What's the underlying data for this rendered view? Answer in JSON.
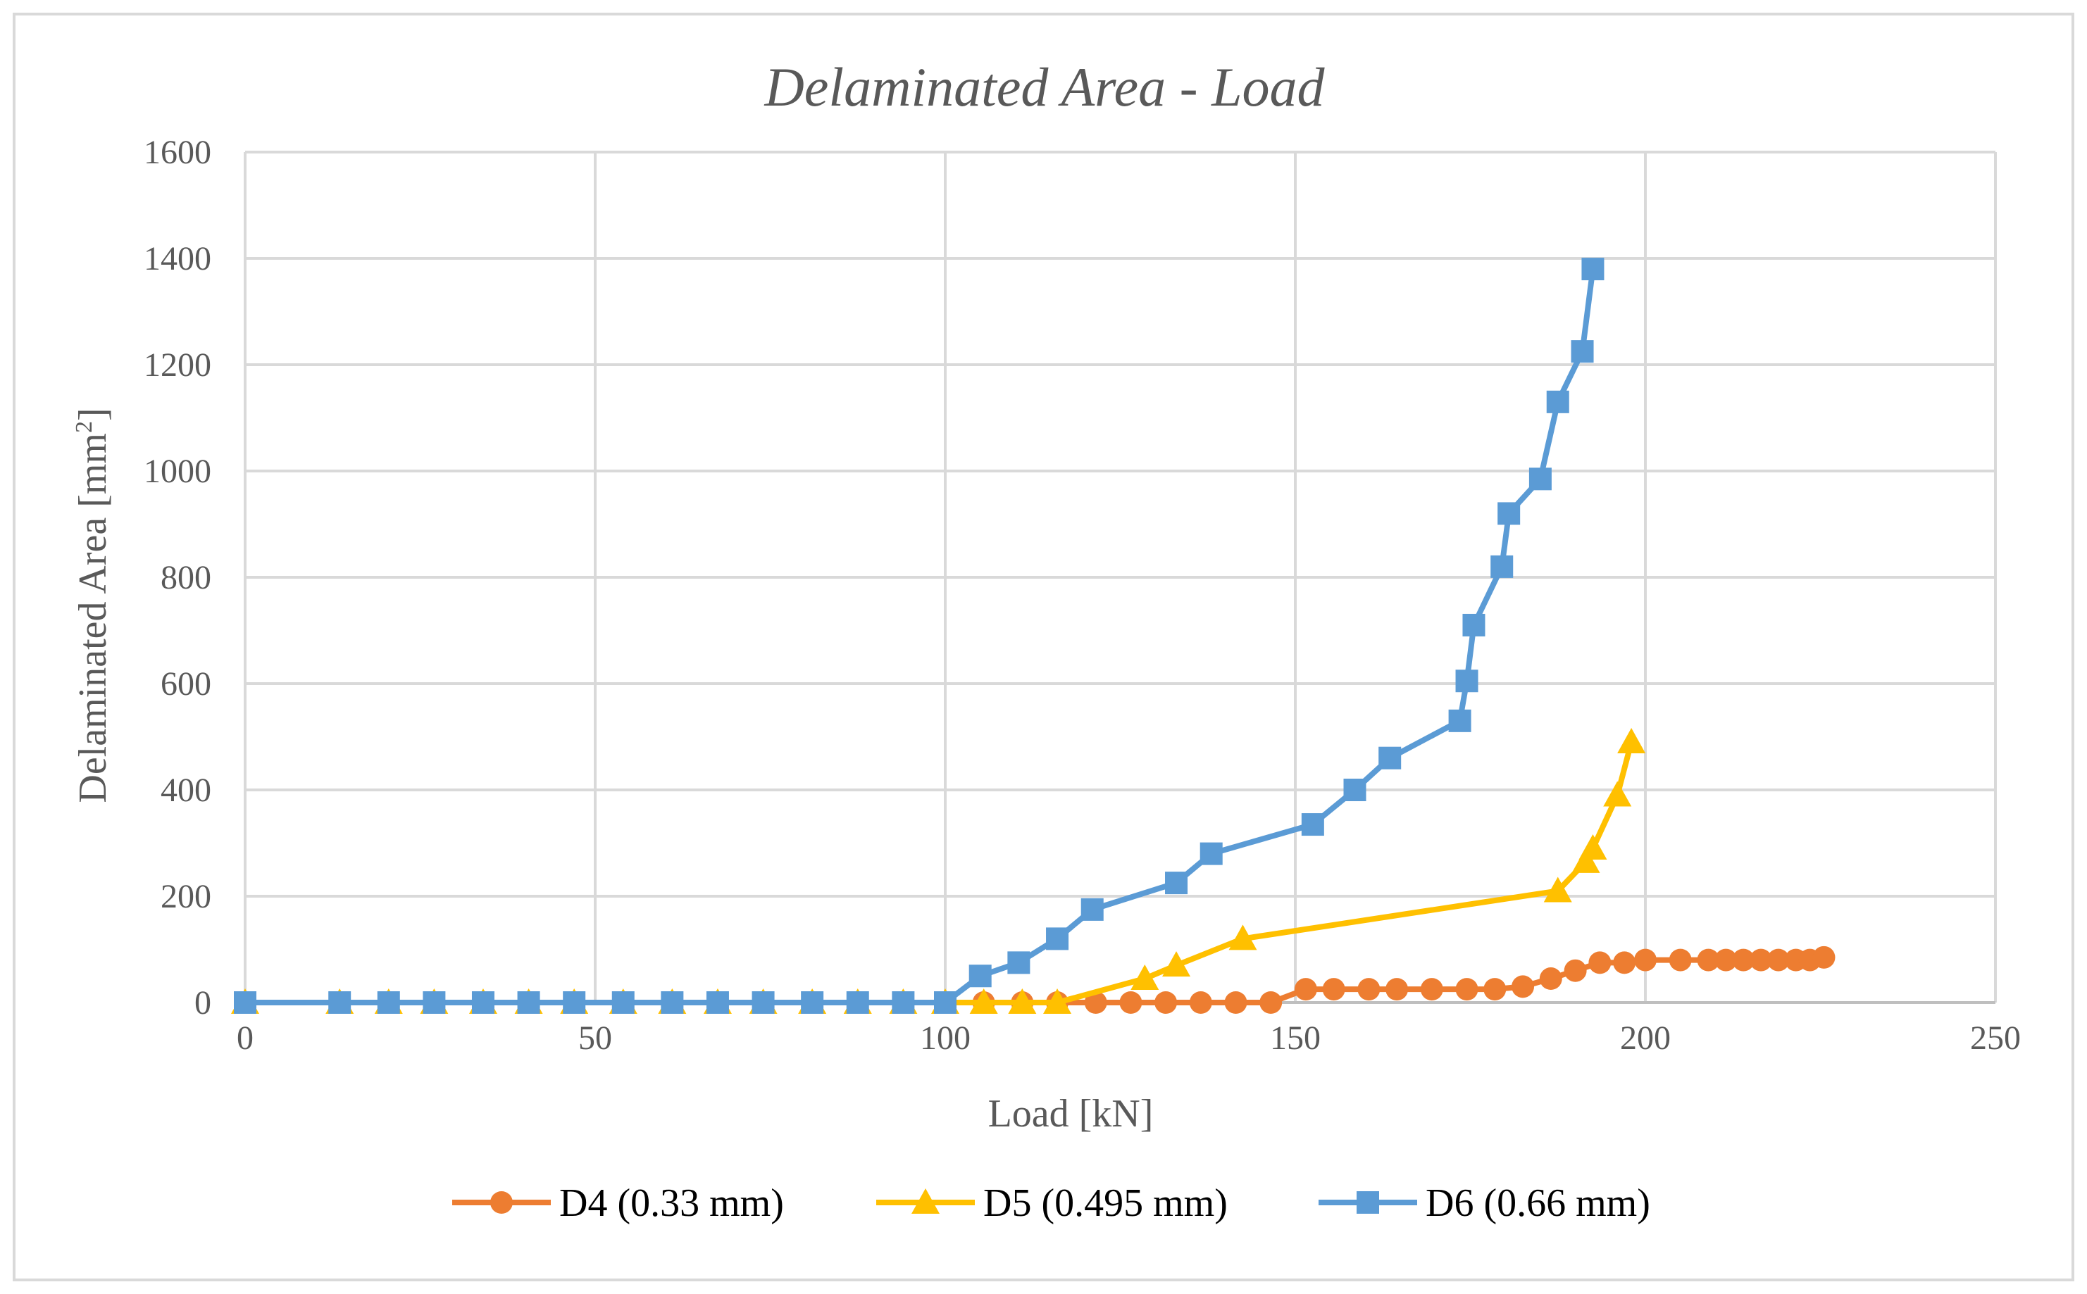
{
  "chart_data": {
    "type": "line",
    "title": "Delaminated Area - Load",
    "xlabel": "Load [kN]",
    "ylabel_prefix": "Delaminated Area [mm",
    "ylabel_sup": "2",
    "ylabel_suffix": "]",
    "xlim": [
      0,
      250
    ],
    "ylim": [
      0,
      1600
    ],
    "xticks": [
      0,
      50,
      100,
      150,
      200,
      250
    ],
    "yticks": [
      0,
      200,
      400,
      600,
      800,
      1000,
      1200,
      1400,
      1600
    ],
    "grid": true,
    "legend_position": "bottom",
    "series": [
      {
        "name": "D4 (0.33 mm)",
        "color": "#ED7D31",
        "marker": "circle",
        "x": [
          0,
          13.5,
          20.5,
          27,
          34,
          40.5,
          47,
          54,
          61,
          67.5,
          74,
          81,
          87.5,
          94,
          100,
          105.5,
          111,
          116,
          121.5,
          126.5,
          131.5,
          136.5,
          141.5,
          146.5,
          151.5,
          155.5,
          160.5,
          164.5,
          169.5,
          174.5,
          178.5,
          182.5,
          186.5,
          190,
          193.5,
          197,
          200,
          205,
          209,
          211.5,
          214,
          216.5,
          219,
          221.5,
          223.5,
          225.5
        ],
        "y": [
          0,
          0,
          0,
          0,
          0,
          0,
          0,
          0,
          0,
          0,
          0,
          0,
          0,
          0,
          0,
          0,
          0,
          0,
          0,
          0,
          0,
          0,
          0,
          0,
          25,
          25,
          25,
          25,
          25,
          25,
          25,
          30,
          45,
          60,
          75,
          75,
          80,
          80,
          80,
          80,
          80,
          80,
          80,
          80,
          80,
          85
        ]
      },
      {
        "name": "D5 (0.495 mm)",
        "color": "#FFC000",
        "marker": "triangle",
        "x": [
          0,
          13.5,
          20.5,
          27,
          34,
          40.5,
          47,
          54,
          61,
          67.5,
          74,
          81,
          87.5,
          94,
          100,
          105.5,
          111,
          116,
          128.5,
          133,
          142.5,
          187.5,
          191.5,
          192.5,
          196,
          198
        ],
        "y": [
          0,
          0,
          0,
          0,
          0,
          0,
          0,
          0,
          0,
          0,
          0,
          0,
          0,
          0,
          0,
          0,
          0,
          0,
          45,
          70,
          120,
          210,
          265,
          290,
          390,
          490
        ]
      },
      {
        "name": "D6 (0.66 mm)",
        "color": "#5B9BD5",
        "marker": "square",
        "x": [
          0,
          13.5,
          20.5,
          27,
          34,
          40.5,
          47,
          54,
          61,
          67.5,
          74,
          81,
          87.5,
          94,
          100,
          105,
          110.5,
          116,
          121,
          133,
          138,
          152.5,
          158.5,
          163.5,
          173.5,
          174.5,
          175.5,
          179.5,
          180.5,
          185,
          187.5,
          191,
          192.5
        ],
        "y": [
          0,
          0,
          0,
          0,
          0,
          0,
          0,
          0,
          0,
          0,
          0,
          0,
          0,
          0,
          0,
          50,
          75,
          120,
          175,
          225,
          280,
          335,
          400,
          460,
          530,
          605,
          710,
          820,
          920,
          985,
          1130,
          1225,
          1380
        ]
      }
    ]
  }
}
